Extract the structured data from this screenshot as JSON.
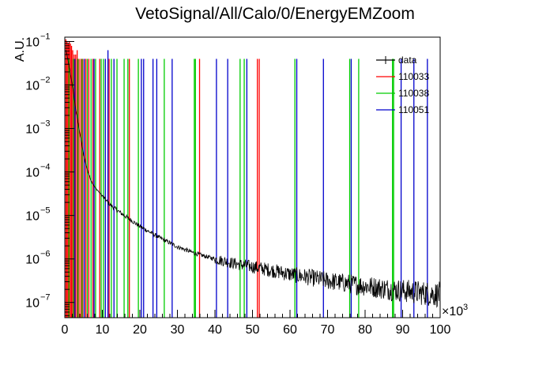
{
  "chart_data": {
    "type": "line",
    "title": "VetoSignal/All/Calo/0/EnergyEMZoom",
    "xlabel": "",
    "ylabel": "A.U.",
    "x_multiplier_label": "×10",
    "x_multiplier_exp": "3",
    "xlim": [
      0,
      100
    ],
    "ylim_log10": [
      -7.35,
      -0.9
    ],
    "log_y": true,
    "x_ticks": [
      0,
      10,
      20,
      30,
      40,
      50,
      60,
      70,
      80,
      90,
      100
    ],
    "x_tick_labels": [
      "0",
      "10",
      "20",
      "30",
      "40",
      "50",
      "60",
      "70",
      "80",
      "90",
      "100"
    ],
    "y_ticks_exp": [
      -1,
      -2,
      -3,
      -4,
      -5,
      -6,
      -7
    ],
    "y_tick_base": "10",
    "y_tick_exps": [
      "−1",
      "−2",
      "−3",
      "−4",
      "−5",
      "−6",
      "−7"
    ],
    "legend_position": "top-right",
    "series": [
      {
        "name": "data",
        "color": "#000000",
        "kind": "curve",
        "points": [
          [
            0.3,
            -1.2
          ],
          [
            1,
            -1.5
          ],
          [
            2,
            -2.0
          ],
          [
            3,
            -2.6
          ],
          [
            4,
            -3.1
          ],
          [
            5,
            -3.6
          ],
          [
            6,
            -3.95
          ],
          [
            7,
            -4.2
          ],
          [
            8,
            -4.35
          ],
          [
            10,
            -4.55
          ],
          [
            12,
            -4.75
          ],
          [
            15,
            -4.95
          ],
          [
            20,
            -5.25
          ],
          [
            25,
            -5.5
          ],
          [
            30,
            -5.72
          ],
          [
            35,
            -5.88
          ],
          [
            40,
            -6.0
          ],
          [
            45,
            -6.1
          ],
          [
            50,
            -6.18
          ],
          [
            55,
            -6.26
          ],
          [
            60,
            -6.35
          ],
          [
            65,
            -6.42
          ],
          [
            70,
            -6.5
          ],
          [
            75,
            -6.56
          ],
          [
            80,
            -6.62
          ],
          [
            85,
            -6.68
          ],
          [
            90,
            -6.73
          ],
          [
            95,
            -6.78
          ],
          [
            100,
            -6.82
          ]
        ]
      },
      {
        "name": "110033",
        "color": "#ff0000",
        "kind": "spikes",
        "spikes": [
          [
            0.3,
            -0.95
          ],
          [
            0.6,
            -1.0
          ],
          [
            0.9,
            -1.05
          ],
          [
            1.2,
            -1.0
          ],
          [
            1.5,
            -1.05
          ],
          [
            1.8,
            -1.1
          ],
          [
            2.1,
            -1.2
          ],
          [
            2.5,
            -1.3
          ],
          [
            2.9,
            -1.3
          ],
          [
            3.3,
            -1.2
          ],
          [
            3.8,
            -1.4
          ],
          [
            4.3,
            -1.4
          ],
          [
            4.8,
            -1.4
          ],
          [
            5.6,
            -1.4
          ],
          [
            6.4,
            -1.4
          ],
          [
            7.5,
            -1.4
          ],
          [
            9.3,
            -1.4
          ],
          [
            11.8,
            -1.4
          ],
          [
            17.2,
            -1.4
          ],
          [
            35.9,
            -1.4
          ],
          [
            51.3,
            -1.4
          ],
          [
            51.8,
            -1.4
          ]
        ]
      },
      {
        "name": "110038",
        "color": "#00cc00",
        "kind": "spikes",
        "spikes": [
          [
            1.1,
            -1.4
          ],
          [
            2.3,
            -1.4
          ],
          [
            3.5,
            -1.4
          ],
          [
            4.6,
            -1.4
          ],
          [
            6.0,
            -1.4
          ],
          [
            7.0,
            -1.4
          ],
          [
            8.2,
            -1.4
          ],
          [
            9.7,
            -1.4
          ],
          [
            10.3,
            -1.4
          ],
          [
            12.4,
            -1.4
          ],
          [
            13.9,
            -1.4
          ],
          [
            15.8,
            -1.4
          ],
          [
            16.8,
            -1.4
          ],
          [
            19.6,
            -1.4
          ],
          [
            26.5,
            -1.4
          ],
          [
            34.5,
            -1.4
          ],
          [
            34.8,
            -1.4
          ],
          [
            46.7,
            -1.4
          ],
          [
            47.8,
            -1.4
          ],
          [
            61.3,
            -1.4
          ],
          [
            75.9,
            -1.4
          ],
          [
            78.3,
            -1.4
          ],
          [
            87.3,
            -1.4
          ],
          [
            87.6,
            -1.4
          ]
        ]
      },
      {
        "name": "110051",
        "color": "#0000cc",
        "kind": "spikes",
        "spikes": [
          [
            2.7,
            -1.4
          ],
          [
            5.2,
            -1.4
          ],
          [
            7.8,
            -1.4
          ],
          [
            10.8,
            -1.4
          ],
          [
            11.5,
            -1.2
          ],
          [
            13.1,
            -1.4
          ],
          [
            20.4,
            -1.4
          ],
          [
            21.0,
            -1.4
          ],
          [
            23.5,
            -1.4
          ],
          [
            24.5,
            -1.4
          ],
          [
            28.6,
            -1.4
          ],
          [
            40.4,
            -1.4
          ],
          [
            43.4,
            -1.4
          ],
          [
            48.5,
            -1.4
          ],
          [
            61.8,
            -1.4
          ],
          [
            68.9,
            -1.4
          ],
          [
            76.3,
            -1.4
          ],
          [
            89.6,
            -1.4
          ],
          [
            93.0,
            -1.4
          ],
          [
            96.6,
            -1.4
          ]
        ]
      }
    ]
  }
}
